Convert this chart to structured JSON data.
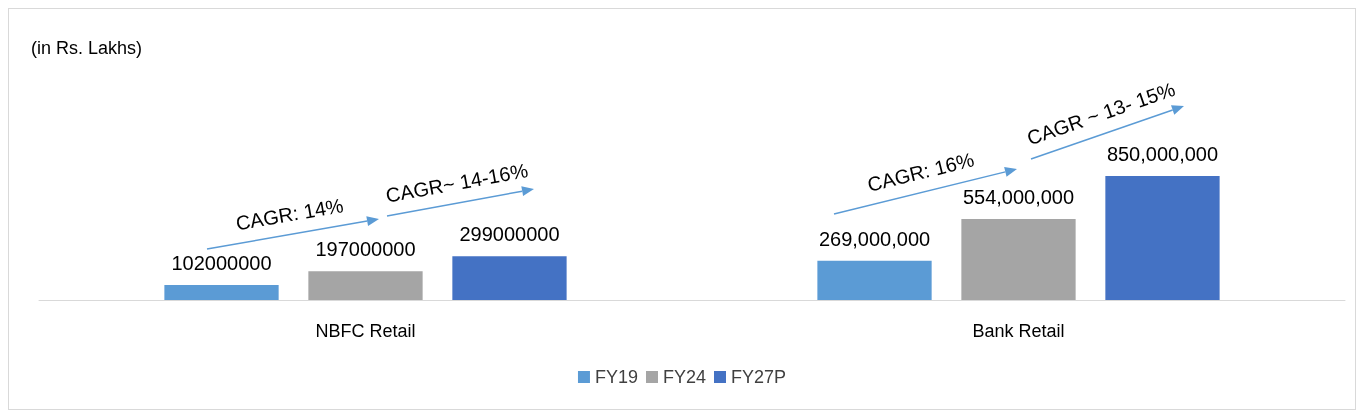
{
  "chart_data": {
    "type": "bar",
    "categories": [
      "NBFC Retail",
      "Bank Retail"
    ],
    "series": [
      {
        "name": "FY19",
        "color": "#5b9bd5",
        "values": [
          102000000,
          269000000
        ],
        "value_labels": [
          "102000000",
          "269,000,000"
        ]
      },
      {
        "name": "FY24",
        "color": "#a5a5a5",
        "values": [
          197000000,
          554000000
        ],
        "value_labels": [
          "197000000",
          "554,000,000"
        ]
      },
      {
        "name": "FY27P",
        "color": "#4472c4",
        "values": [
          299000000,
          850000000
        ],
        "value_labels": [
          "299000000",
          "850,000,000"
        ]
      }
    ],
    "annotations": [
      "(in Rs. Lakhs)",
      "CAGR: 14%",
      "CAGR~ 14-16%",
      "CAGR: 16%",
      "CAGR ~ 13- 15%"
    ],
    "legend": "bottom",
    "grid": false
  }
}
